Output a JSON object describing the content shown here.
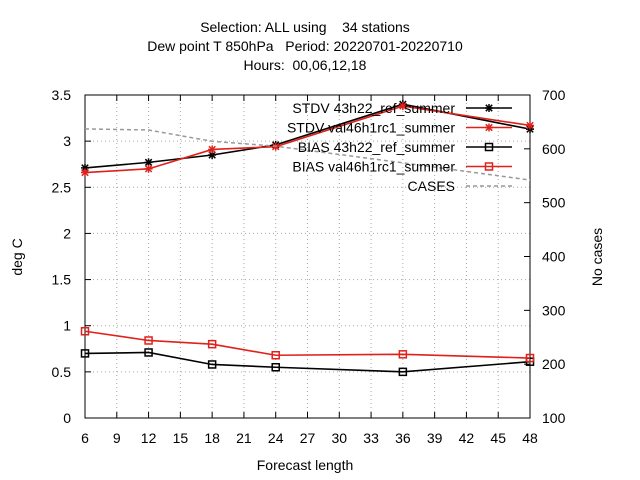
{
  "chart_data": {
    "type": "line",
    "title_lines": [
      "Selection: ALL using    34 stations",
      "Dew point T 850hPa   Period: 20220701-20220710",
      "Hours:  00,06,12,18"
    ],
    "xlabel": "Forecast length",
    "ylabel": "deg C",
    "y2label": "No cases",
    "x_ticks": [
      6,
      9,
      12,
      15,
      18,
      21,
      24,
      27,
      30,
      33,
      36,
      39,
      42,
      45,
      48
    ],
    "y_ticks": [
      "0",
      "0.5",
      "1",
      "1.5",
      "2",
      "2.5",
      "3",
      "3.5"
    ],
    "y2_ticks": [
      "100",
      "200",
      "300",
      "400",
      "500",
      "600",
      "700"
    ],
    "xlim": [
      6,
      48
    ],
    "ylim": [
      0,
      3.5
    ],
    "y2lim": [
      100,
      700
    ],
    "grid": true,
    "legend_position": "top-right",
    "series": [
      {
        "name": "STDV 43h22_ref_summer",
        "axis": "y1",
        "color": "#000000",
        "marker": "star",
        "x": [
          6,
          12,
          18,
          24,
          36,
          48
        ],
        "values": [
          2.71,
          2.77,
          2.85,
          2.96,
          3.4,
          3.13
        ]
      },
      {
        "name": "STDV val46h1rc1_summer",
        "axis": "y1",
        "color": "#e0201b",
        "marker": "star",
        "x": [
          6,
          12,
          18,
          24,
          36,
          48
        ],
        "values": [
          2.66,
          2.7,
          2.91,
          2.94,
          3.38,
          3.17
        ]
      },
      {
        "name": "BIAS 43h22_ref_summer",
        "axis": "y1",
        "color": "#000000",
        "marker": "square",
        "x": [
          6,
          12,
          18,
          24,
          36,
          48
        ],
        "values": [
          0.7,
          0.71,
          0.58,
          0.55,
          0.5,
          0.61
        ]
      },
      {
        "name": "BIAS val46h1rc1_summer",
        "axis": "y1",
        "color": "#e0201b",
        "marker": "square",
        "x": [
          6,
          12,
          18,
          24,
          36,
          48
        ],
        "values": [
          0.94,
          0.84,
          0.8,
          0.68,
          0.69,
          0.65
        ]
      },
      {
        "name": "CASES",
        "axis": "y2",
        "color": "#999999",
        "marker": "none",
        "dashed": true,
        "x": [
          6,
          12,
          18,
          24,
          36,
          48
        ],
        "values": [
          637,
          635,
          614,
          605,
          574,
          542
        ]
      }
    ]
  }
}
